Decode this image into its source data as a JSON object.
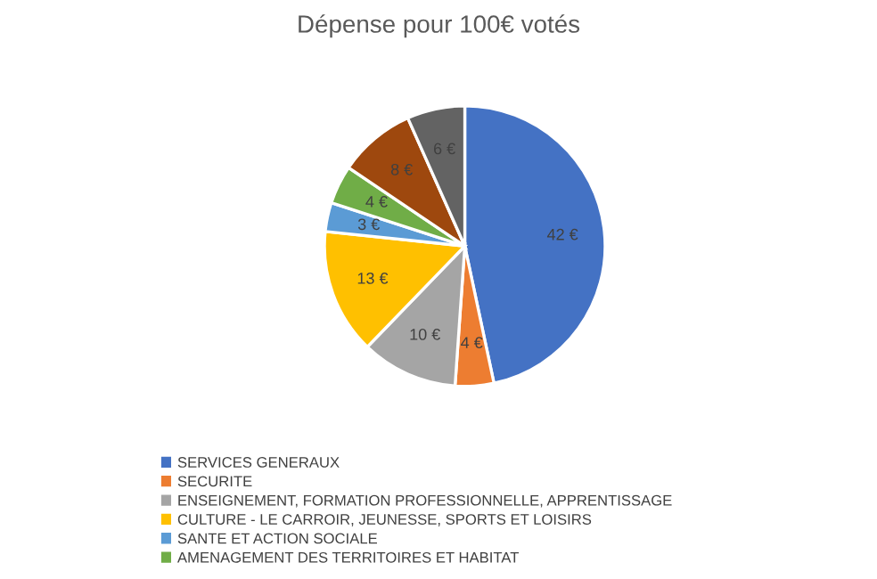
{
  "chart_data": {
    "type": "pie",
    "title": "Dépense pour 100€ votés",
    "categories": [
      "SERVICES GENERAUX",
      "SECURITE",
      "ENSEIGNEMENT, FORMATION PROFESSIONNELLE, APPRENTISSAGE",
      "CULTURE - LE CARROIR, JEUNESSE, SPORTS ET LOISIRS",
      "SANTE ET ACTION SOCIALE",
      "AMENAGEMENT DES TERRITOIRES ET HABITAT",
      null,
      null
    ],
    "values": [
      42,
      4,
      10,
      13,
      3,
      4,
      8,
      6
    ],
    "colors": [
      "#4472c4",
      "#ed7d31",
      "#a5a5a5",
      "#ffc000",
      "#5b9bd5",
      "#70ad47",
      "#9e480e",
      "#636363"
    ],
    "value_labels": [
      "42 €",
      "4 €",
      "10 €",
      "13 €",
      "3 €",
      "4 €",
      "8 €",
      "6 €"
    ],
    "legend": "bottom"
  }
}
